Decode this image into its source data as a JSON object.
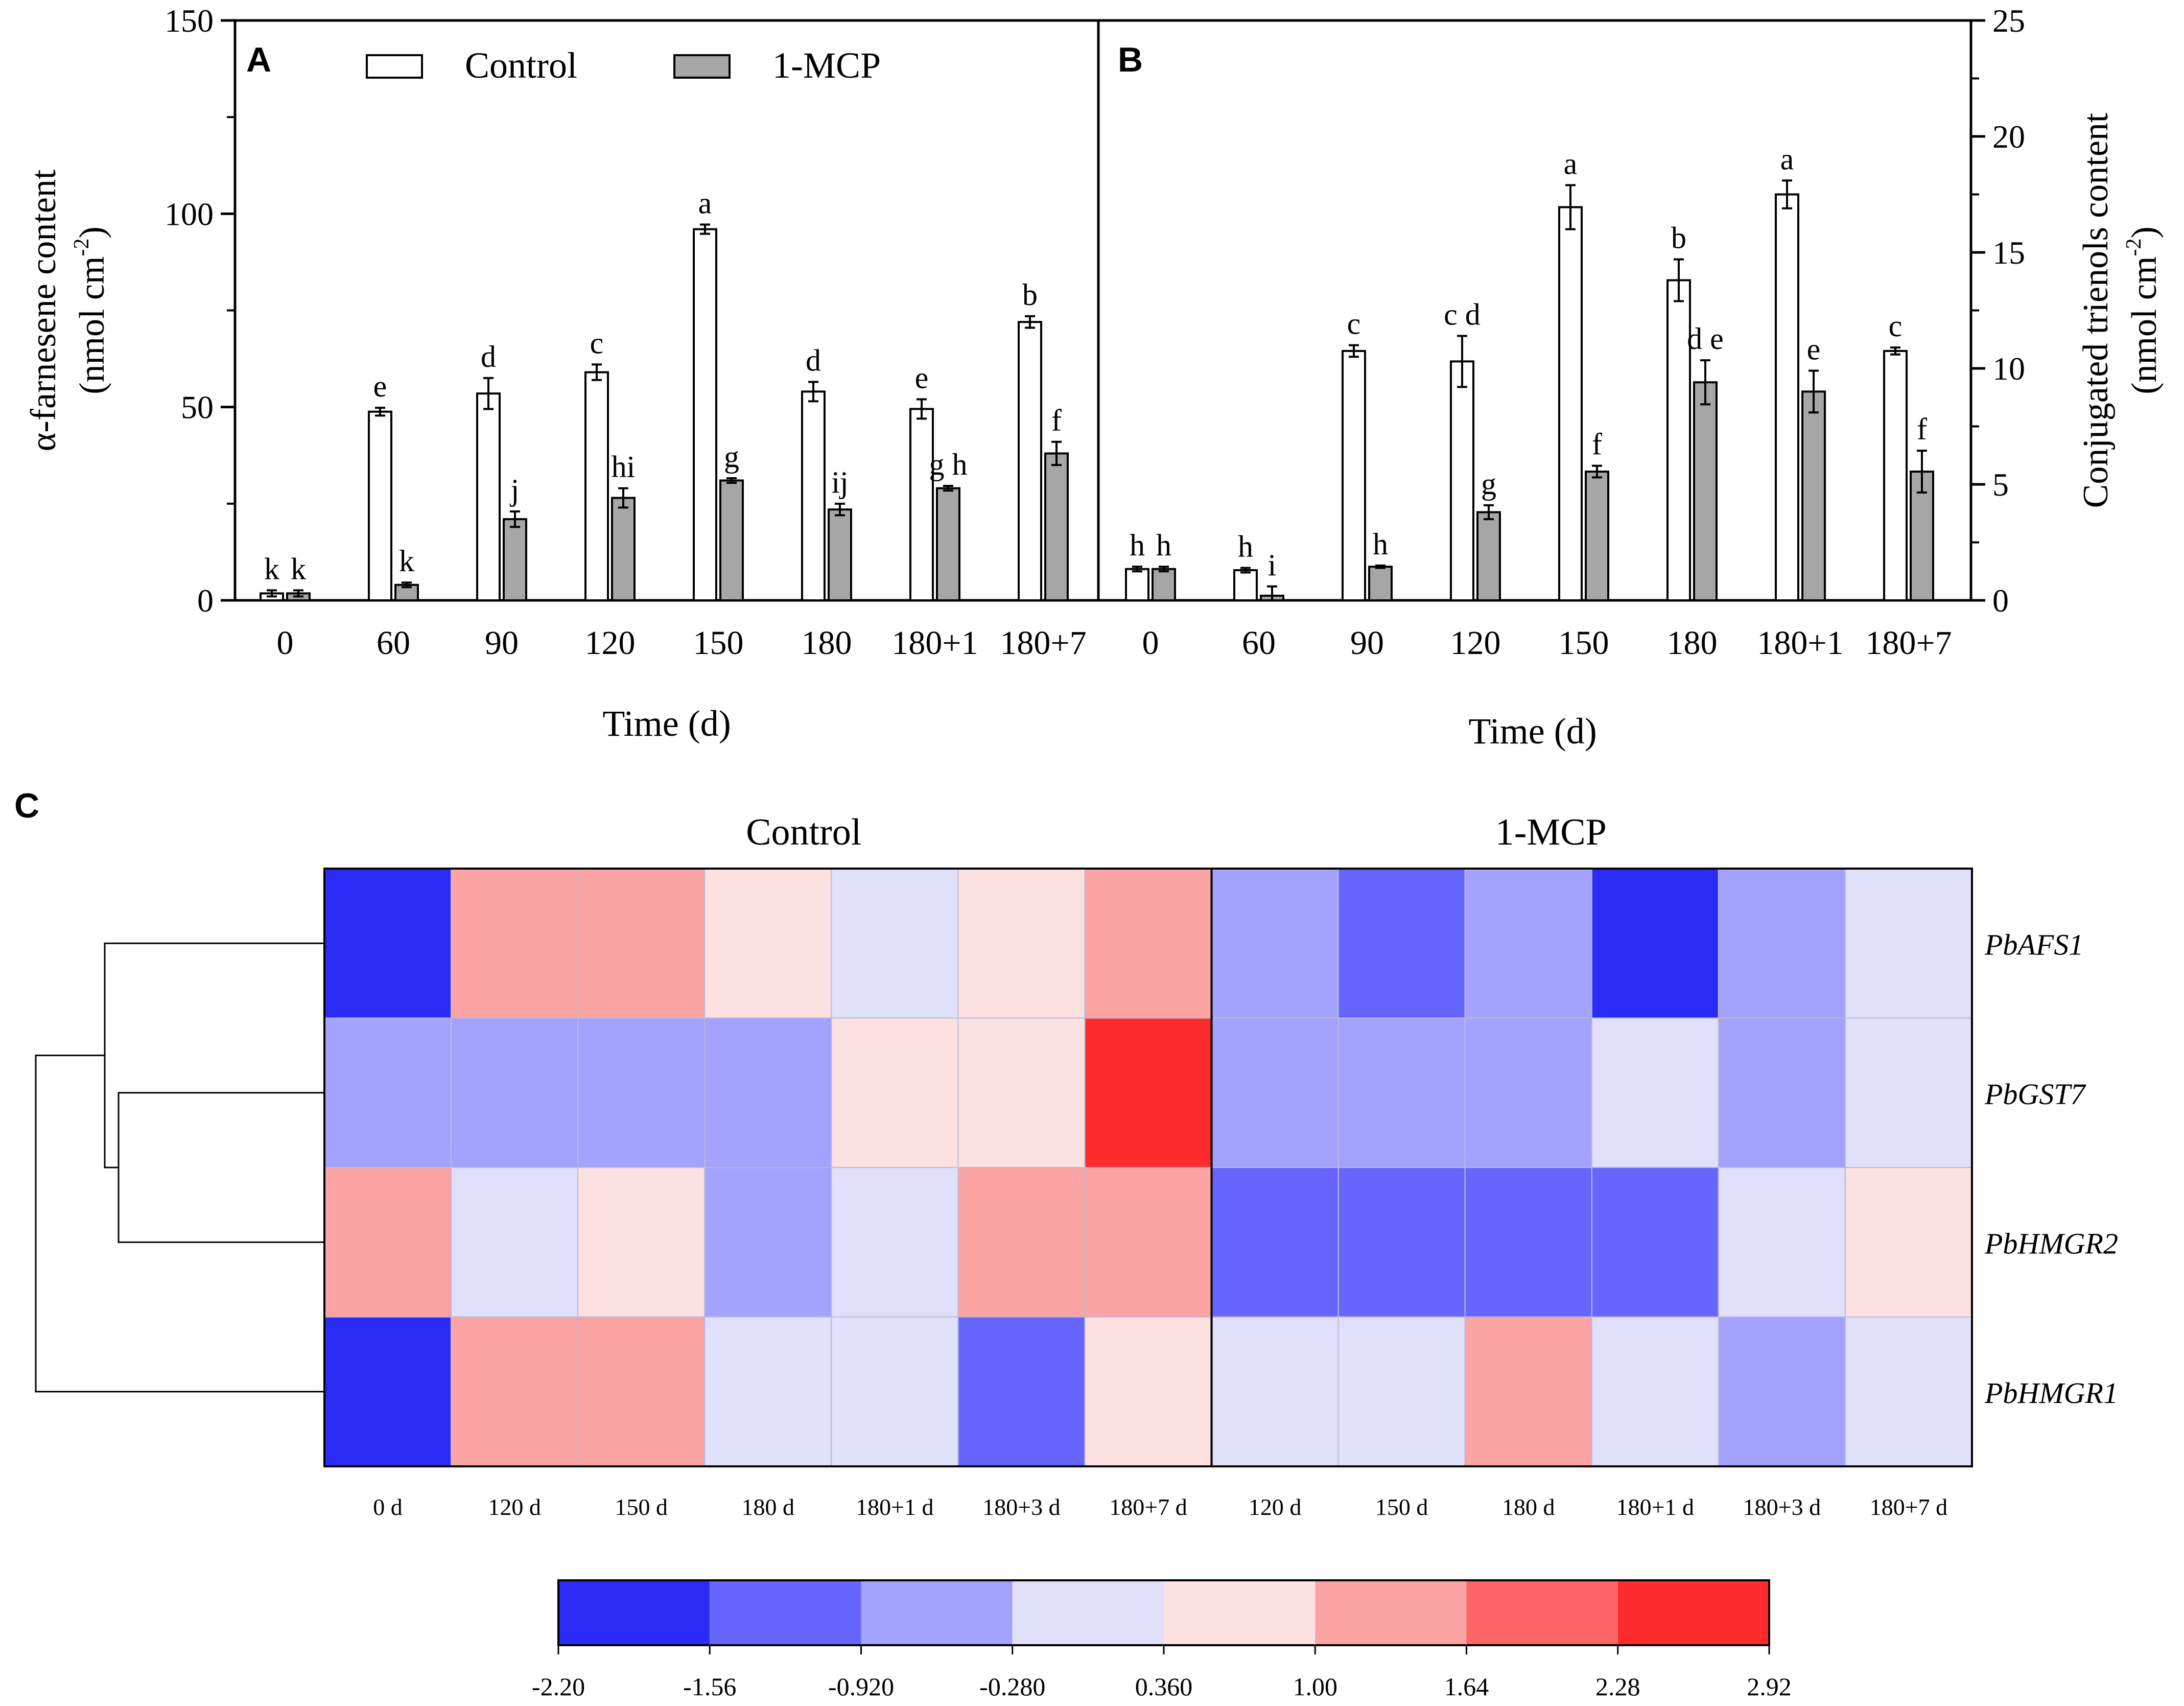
{
  "chart_data": [
    {
      "type": "bar",
      "panel_label": "A",
      "title": "",
      "xlabel": "Time (d)",
      "ylabel": "α-farnesene content",
      "ylabel_unit": "(nmol cm",
      "ylabel_unit_sup": "-2",
      "ylabel_unit_end": ")",
      "ylim": [
        0,
        150
      ],
      "yticks": [
        "0",
        "50",
        "100",
        "150"
      ],
      "grid": false,
      "legend_position": "top",
      "categories": [
        "0",
        "60",
        "90",
        "120",
        "150",
        "180",
        "180+1",
        "180+7"
      ],
      "series": [
        {
          "name": "Control",
          "color": "#ffffff",
          "values": [
            1.8,
            48.8,
            53.5,
            59.0,
            96.0,
            54.0,
            49.5,
            72.0
          ],
          "errors": [
            0.8,
            1.0,
            4.0,
            2.0,
            1.2,
            2.5,
            2.5,
            1.5
          ],
          "letters": [
            "k",
            "e",
            "d",
            "c",
            "a",
            "d",
            "e",
            "b"
          ]
        },
        {
          "name": "1-MCP",
          "color": "#a6a6a6",
          "values": [
            1.8,
            4.0,
            21.0,
            26.5,
            31.0,
            23.5,
            29.0,
            38.0
          ],
          "errors": [
            0.8,
            0.6,
            2.0,
            2.5,
            0.6,
            1.5,
            0.6,
            3.0
          ],
          "letters": [
            "k",
            "k",
            "j",
            "hi",
            "g",
            "ij",
            "g h",
            "f"
          ]
        }
      ]
    },
    {
      "type": "bar",
      "panel_label": "B",
      "title": "",
      "xlabel": "Time (d)",
      "ylabel": "Conjugated trienols content",
      "ylabel_unit": "(nmol cm",
      "ylabel_unit_sup": "-2",
      "ylabel_unit_end": ")",
      "ylim": [
        0,
        25
      ],
      "yticks": [
        "0",
        "5",
        "10",
        "15",
        "20",
        "25"
      ],
      "grid": false,
      "categories": [
        "0",
        "60",
        "90",
        "120",
        "150",
        "180",
        "180+1",
        "180+7"
      ],
      "series": [
        {
          "name": "Control",
          "color": "#ffffff",
          "values": [
            1.35,
            1.3,
            10.75,
            10.3,
            16.95,
            13.8,
            17.5,
            10.75
          ],
          "errors": [
            0.1,
            0.1,
            0.25,
            1.1,
            0.95,
            0.9,
            0.6,
            0.15
          ],
          "letters": [
            "h",
            "h",
            "c",
            "c d",
            "a",
            "b",
            "a",
            "c"
          ]
        },
        {
          "name": "1-MCP",
          "color": "#a6a6a6",
          "values": [
            1.35,
            0.2,
            1.45,
            3.8,
            5.55,
            9.4,
            9.0,
            5.55
          ],
          "errors": [
            0.1,
            0.4,
            0.05,
            0.3,
            0.25,
            0.95,
            0.9,
            0.9
          ],
          "letters": [
            "h",
            "i",
            "h",
            "g",
            "f",
            "d e",
            "e",
            "f"
          ]
        }
      ]
    },
    {
      "type": "heatmap",
      "panel_label": "C",
      "group_labels": [
        "Control",
        "1-MCP"
      ],
      "group_sizes": [
        7,
        6
      ],
      "columns": [
        "0 d",
        "120 d",
        "150 d",
        "180 d",
        "180+1 d",
        "180+3 d",
        "180+7 d",
        "120 d",
        "150 d",
        "180 d",
        "180+1 d",
        "180+3 d",
        "180+7 d"
      ],
      "rows": [
        "PbAFS1",
        "PbGST7",
        "PbHMGR2",
        "PbHMGR1"
      ],
      "values": [
        [
          -2.0,
          1.3,
          1.3,
          0.6,
          0.0,
          0.6,
          1.3,
          -0.6,
          -1.3,
          -0.6,
          -1.9,
          -0.6,
          0.0
        ],
        [
          -0.6,
          -0.6,
          -0.6,
          -0.6,
          0.6,
          0.6,
          2.6,
          -0.6,
          -0.6,
          -0.6,
          0.0,
          -0.6,
          0.0
        ],
        [
          1.3,
          0.0,
          0.6,
          -0.6,
          0.0,
          1.3,
          1.3,
          -1.3,
          -1.3,
          -1.3,
          -1.3,
          0.0,
          0.6
        ],
        [
          -2.0,
          1.3,
          1.3,
          0.0,
          0.0,
          -1.3,
          0.6,
          0.0,
          0.0,
          1.3,
          0.0,
          -0.6,
          0.0
        ]
      ],
      "dendrogram_order": [
        "PbAFS1",
        "PbGST7",
        "PbHMGR2",
        "PbHMGR1"
      ],
      "colorbar_ticks": [
        "-2.20",
        "-1.56",
        "-0.920",
        "-0.280",
        "0.360",
        "1.00",
        "1.64",
        "2.28",
        "2.92"
      ],
      "colorbar_colors": [
        "#2b2bf7",
        "#6666ff",
        "#a3a3ff",
        "#e0e0fa",
        "#fde0e0",
        "#fca3a3",
        "#fd6565",
        "#fd2b2b"
      ]
    }
  ]
}
